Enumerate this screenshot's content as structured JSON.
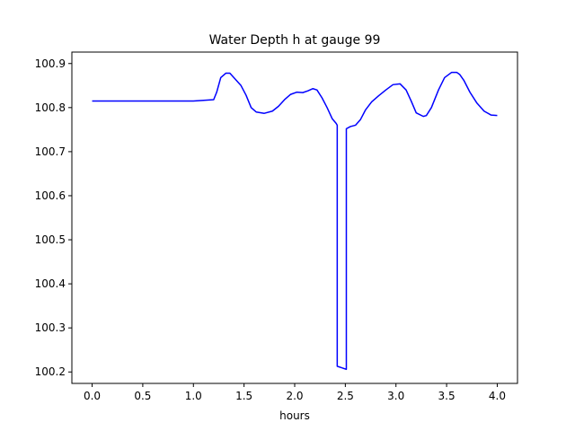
{
  "chart_data": {
    "type": "line",
    "title": "Water Depth h at gauge 99",
    "xlabel": "hours",
    "ylabel": "",
    "xlim": [
      -0.2,
      4.2
    ],
    "ylim": [
      100.174,
      100.926
    ],
    "xticks": [
      0.0,
      0.5,
      1.0,
      1.5,
      2.0,
      2.5,
      3.0,
      3.5,
      4.0
    ],
    "xtick_labels": [
      "0.0",
      "0.5",
      "1.0",
      "1.5",
      "2.0",
      "2.5",
      "3.0",
      "3.5",
      "4.0"
    ],
    "yticks": [
      100.2,
      100.3,
      100.4,
      100.5,
      100.6,
      100.7,
      100.8,
      100.9
    ],
    "ytick_labels": [
      "100.2",
      "100.3",
      "100.4",
      "100.5",
      "100.6",
      "100.7",
      "100.8",
      "100.9"
    ],
    "grid": false,
    "legend": "none",
    "series": [
      {
        "color": "#0000ff",
        "x": [
          0.0,
          0.5,
          1.0,
          1.2,
          1.23,
          1.27,
          1.32,
          1.36,
          1.4,
          1.47,
          1.52,
          1.57,
          1.62,
          1.7,
          1.78,
          1.84,
          1.9,
          1.96,
          2.02,
          2.08,
          2.13,
          2.18,
          2.22,
          2.27,
          2.32,
          2.37,
          2.41,
          2.42,
          2.42,
          2.51,
          2.51,
          2.55,
          2.6,
          2.65,
          2.7,
          2.76,
          2.83,
          2.9,
          2.97,
          3.04,
          3.1,
          3.15,
          3.2,
          3.27,
          3.3,
          3.35,
          3.42,
          3.48,
          3.55,
          3.6,
          3.63,
          3.67,
          3.73,
          3.8,
          3.87,
          3.94,
          4.0
        ],
        "y": [
          100.815,
          100.815,
          100.815,
          100.818,
          100.835,
          100.868,
          100.878,
          100.878,
          100.868,
          100.85,
          100.828,
          100.8,
          100.79,
          100.787,
          100.792,
          100.803,
          100.818,
          100.83,
          100.835,
          100.834,
          100.838,
          100.843,
          100.84,
          100.822,
          100.8,
          100.775,
          100.764,
          100.76,
          100.213,
          100.206,
          100.752,
          100.757,
          100.76,
          100.773,
          100.795,
          100.813,
          100.827,
          100.84,
          100.852,
          100.854,
          100.84,
          100.815,
          100.788,
          100.78,
          100.782,
          100.8,
          100.84,
          100.868,
          100.88,
          100.88,
          100.875,
          100.862,
          100.835,
          100.81,
          100.792,
          100.783,
          100.782
        ]
      }
    ]
  }
}
